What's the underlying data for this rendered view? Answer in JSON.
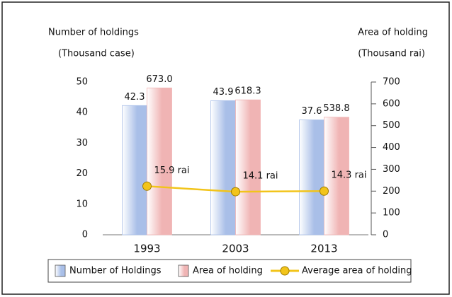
{
  "chart_data": {
    "type": "bar",
    "ylabel": [
      "Number of holdings",
      "(Thousand case)"
    ],
    "y2label": [
      "Area of holding",
      "(Thousand rai)"
    ],
    "categories": [
      "1993",
      "2003",
      "2013"
    ],
    "series": [
      {
        "name": "Number of Holdings",
        "color": "#a9bfe8",
        "values": [
          42.3,
          43.9,
          37.6
        ]
      },
      {
        "name": "Area of holding",
        "color": "#f0b4b4",
        "axis": "y2",
        "values": [
          673,
          618.3,
          538.8
        ],
        "value_labels": [
          "673.0",
          "618.3",
          "538.8"
        ]
      },
      {
        "name": "Average area of holding",
        "type": "line",
        "color": "#f2c41a",
        "values": [
          15.9,
          14.1,
          14.3
        ],
        "value_labels": [
          "15.9 rai",
          "14.1 rai",
          "14.3 rai"
        ]
      }
    ],
    "ylim": [
      0,
      50
    ],
    "yticks": [
      0,
      10,
      20,
      30,
      40,
      50
    ],
    "y2lim": [
      0,
      700
    ],
    "y2ticks": [
      0,
      100,
      200,
      300,
      400,
      500,
      600,
      700
    ],
    "legend": "bottom"
  }
}
